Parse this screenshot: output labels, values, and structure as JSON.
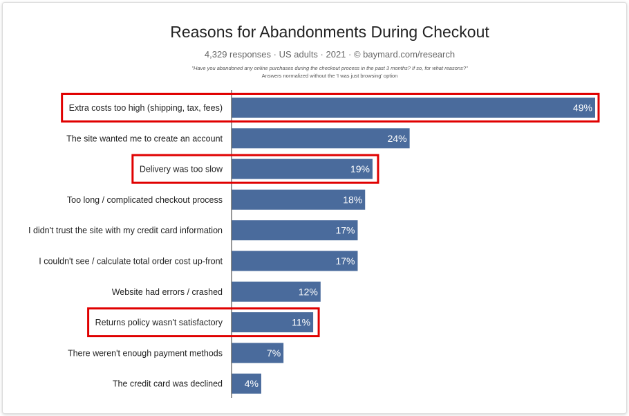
{
  "chart_data": {
    "type": "bar",
    "orientation": "horizontal",
    "title": "Reasons for Abandonments During Checkout",
    "subtitle": "4,329 responses · US adults · 2021 · © baymard.com/research",
    "question": "\"Have you abandoned any online purchases during the checkout process in the past 3 months? If so, for what reasons?\"",
    "note": "Answers normalized without the 'I was just browsing' option",
    "categories": [
      "Extra costs too high (shipping, tax, fees)",
      "The site wanted me to create an account",
      "Delivery was too slow",
      "Too long / complicated checkout process",
      "I didn't trust the site with my credit card information",
      "I couldn't see / calculate total order cost up-front",
      "Website had errors / crashed",
      "Returns policy wasn't satisfactory",
      "There weren't enough payment methods",
      "The credit card was declined"
    ],
    "values": [
      49,
      24,
      19,
      18,
      17,
      17,
      12,
      11,
      7,
      4
    ],
    "value_labels": [
      "49%",
      "24%",
      "19%",
      "18%",
      "17%",
      "17%",
      "12%",
      "11%",
      "7%",
      "4%"
    ],
    "highlighted": [
      true,
      false,
      true,
      false,
      false,
      false,
      false,
      true,
      false,
      false
    ],
    "xlim": [
      0,
      49
    ],
    "colors": {
      "bar": "#4a6b9c",
      "highlight": "#e00000",
      "axis": "#555555"
    }
  }
}
